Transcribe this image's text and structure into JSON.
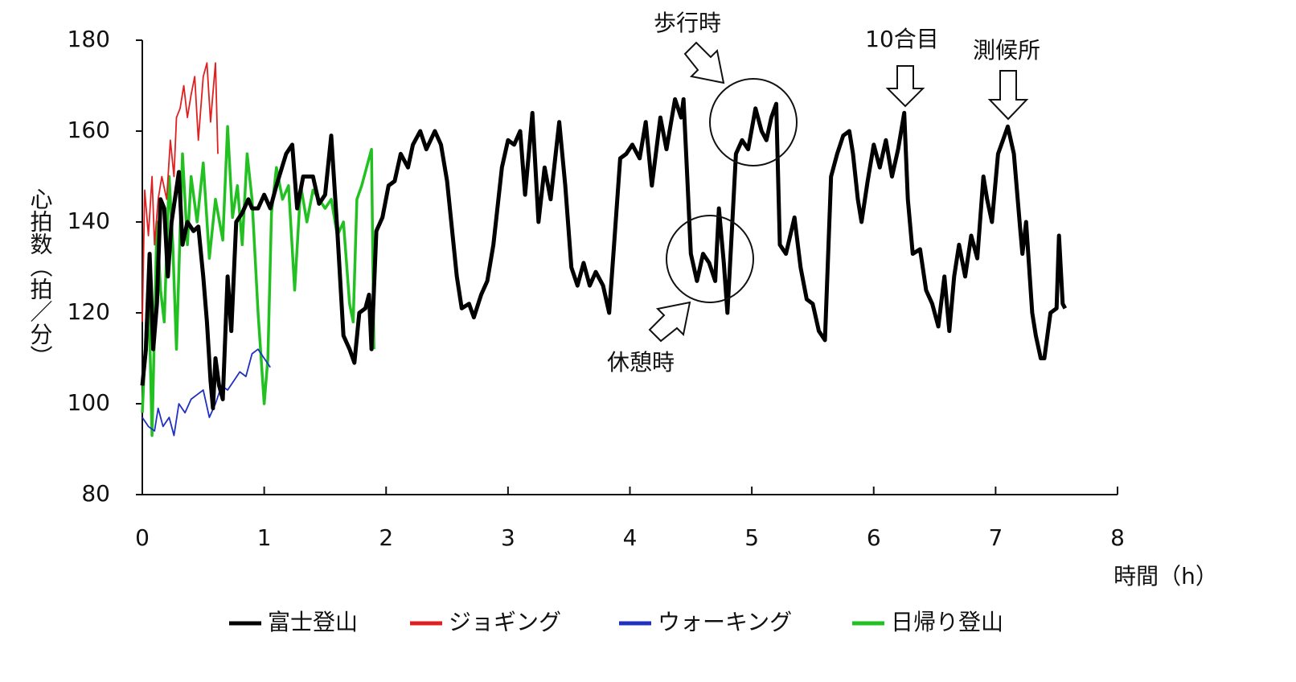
{
  "chart_data": {
    "type": "line",
    "y_label": "心拍数（拍／分）",
    "x_label": "時間（h）",
    "annotations": [
      "歩行時",
      "休憩時",
      "10合目",
      "測候所"
    ],
    "xlim": [
      0,
      8
    ],
    "xticks": [
      0,
      1,
      2,
      3,
      4,
      5,
      6,
      7,
      8
    ],
    "ylim": [
      80,
      180
    ],
    "yticks": [
      80,
      100,
      120,
      140,
      160,
      180
    ],
    "legend": "bottom",
    "series": [
      {
        "name": "富士登山",
        "color": "#000000",
        "x": [
          0,
          0.03,
          0.06,
          0.09,
          0.12,
          0.15,
          0.18,
          0.21,
          0.24,
          0.3,
          0.33,
          0.37,
          0.42,
          0.46,
          0.5,
          0.53,
          0.56,
          0.58,
          0.6,
          0.63,
          0.66,
          0.7,
          0.73,
          0.77,
          0.82,
          0.87,
          0.9,
          0.95,
          1.0,
          1.05,
          1.1,
          1.18,
          1.23,
          1.27,
          1.32,
          1.4,
          1.45,
          1.5,
          1.55,
          1.6,
          1.65,
          1.7,
          1.74,
          1.78,
          1.83,
          1.86,
          1.88,
          1.92,
          1.97,
          2.02,
          2.07,
          2.12,
          2.18,
          2.22,
          2.28,
          2.33,
          2.4,
          2.45,
          2.5,
          2.55,
          2.58,
          2.62,
          2.68,
          2.72,
          2.78,
          2.83,
          2.88,
          2.95,
          3.0,
          3.05,
          3.1,
          3.14,
          3.17,
          3.2,
          3.25,
          3.3,
          3.35,
          3.42,
          3.47,
          3.52,
          3.57,
          3.62,
          3.67,
          3.72,
          3.78,
          3.83,
          3.87,
          3.92,
          3.97,
          4.02,
          4.08,
          4.13,
          4.18,
          4.25,
          4.3,
          4.37,
          4.42,
          4.44,
          4.47,
          4.5,
          4.55,
          4.6,
          4.65,
          4.7,
          4.73,
          4.77,
          4.8,
          4.84,
          4.87,
          4.92,
          4.97,
          5.03,
          5.08,
          5.12,
          5.16,
          5.2,
          5.23,
          5.28,
          5.35,
          5.4,
          5.45,
          5.5,
          5.55,
          5.6,
          5.65,
          5.7,
          5.75,
          5.8,
          5.83,
          5.87,
          5.9,
          5.95,
          6.0,
          6.05,
          6.1,
          6.15,
          6.2,
          6.25,
          6.28,
          6.32,
          6.38,
          6.43,
          6.48,
          6.53,
          6.58,
          6.62,
          6.66,
          6.7,
          6.75,
          6.8,
          6.85,
          6.9,
          6.93,
          6.97,
          7.02,
          7.06,
          7.1,
          7.15,
          7.2,
          7.22,
          7.25,
          7.3,
          7.33,
          7.37,
          7.4,
          7.45,
          7.5,
          7.52,
          7.55,
          7.57
        ],
        "values": [
          104,
          112,
          133,
          112,
          122,
          145,
          143,
          128,
          140,
          151,
          135,
          140,
          138,
          139,
          128,
          118,
          105,
          99,
          110,
          104,
          101,
          128,
          116,
          140,
          142,
          145,
          143,
          143,
          146,
          143,
          148,
          155,
          157,
          143,
          150,
          150,
          144,
          146,
          159,
          138,
          115,
          112,
          109,
          120,
          121,
          124,
          112,
          138,
          141,
          148,
          149,
          155,
          152,
          157,
          160,
          156,
          160,
          157,
          149,
          136,
          128,
          121,
          122,
          119,
          124,
          127,
          135,
          152,
          158,
          157,
          160,
          146,
          155,
          164,
          140,
          152,
          145,
          162,
          148,
          130,
          126,
          131,
          126,
          129,
          126,
          120,
          135,
          154,
          155,
          157,
          154,
          162,
          148,
          163,
          156,
          167,
          163,
          167,
          150,
          133,
          127,
          133,
          131,
          127,
          143,
          131,
          120,
          140,
          155,
          158,
          156,
          165,
          160,
          158,
          163,
          166,
          135,
          133,
          141,
          130,
          123,
          122,
          116,
          114,
          150,
          155,
          159,
          160,
          155,
          145,
          140,
          149,
          157,
          152,
          158,
          150,
          156,
          164,
          145,
          133,
          134,
          125,
          122,
          117,
          128,
          116,
          128,
          135,
          128,
          137,
          132,
          150,
          145,
          140,
          155,
          158,
          161,
          155,
          139,
          133,
          140,
          120,
          115,
          110,
          110,
          120,
          121,
          137,
          122,
          121
        ]
      },
      {
        "name": "ジョギング",
        "color": "#e02020",
        "x": [
          0,
          0.02,
          0.05,
          0.08,
          0.1,
          0.13,
          0.16,
          0.2,
          0.23,
          0.26,
          0.28,
          0.31,
          0.34,
          0.37,
          0.4,
          0.43,
          0.46,
          0.5,
          0.53,
          0.56,
          0.6,
          0.62
        ],
        "values": [
          118,
          147,
          137,
          150,
          135,
          145,
          150,
          145,
          158,
          150,
          163,
          165,
          170,
          163,
          168,
          172,
          158,
          172,
          175,
          162,
          175,
          155
        ]
      },
      {
        "name": "ウォーキング",
        "color": "#2030c0",
        "x": [
          0,
          0.05,
          0.1,
          0.13,
          0.17,
          0.22,
          0.26,
          0.3,
          0.35,
          0.4,
          0.45,
          0.5,
          0.55,
          0.6,
          0.65,
          0.7,
          0.75,
          0.8,
          0.85,
          0.9,
          0.95,
          1.0,
          1.05
        ],
        "values": [
          97,
          95,
          94,
          99,
          95,
          97,
          93,
          100,
          98,
          101,
          102,
          103,
          97,
          100,
          104,
          103,
          105,
          107,
          106,
          111,
          112,
          110,
          108
        ]
      },
      {
        "name": "日帰り登山",
        "color": "#22c020",
        "x": [
          0,
          0.05,
          0.08,
          0.12,
          0.15,
          0.18,
          0.22,
          0.25,
          0.28,
          0.33,
          0.37,
          0.4,
          0.45,
          0.5,
          0.55,
          0.6,
          0.66,
          0.7,
          0.74,
          0.78,
          0.82,
          0.86,
          0.9,
          0.95,
          1.0,
          1.03,
          1.06,
          1.1,
          1.15,
          1.2,
          1.25,
          1.3,
          1.35,
          1.4,
          1.5,
          1.55,
          1.6,
          1.65,
          1.7,
          1.73,
          1.76,
          1.8,
          1.85,
          1.88,
          1.9
        ],
        "values": [
          98,
          128,
          93,
          140,
          125,
          118,
          150,
          135,
          112,
          155,
          135,
          150,
          140,
          153,
          132,
          145,
          136,
          161,
          141,
          148,
          135,
          155,
          145,
          120,
          100,
          110,
          142,
          152,
          145,
          148,
          125,
          148,
          140,
          147,
          143,
          145,
          137,
          140,
          122,
          118,
          145,
          148,
          153,
          156,
          112
        ]
      }
    ]
  }
}
